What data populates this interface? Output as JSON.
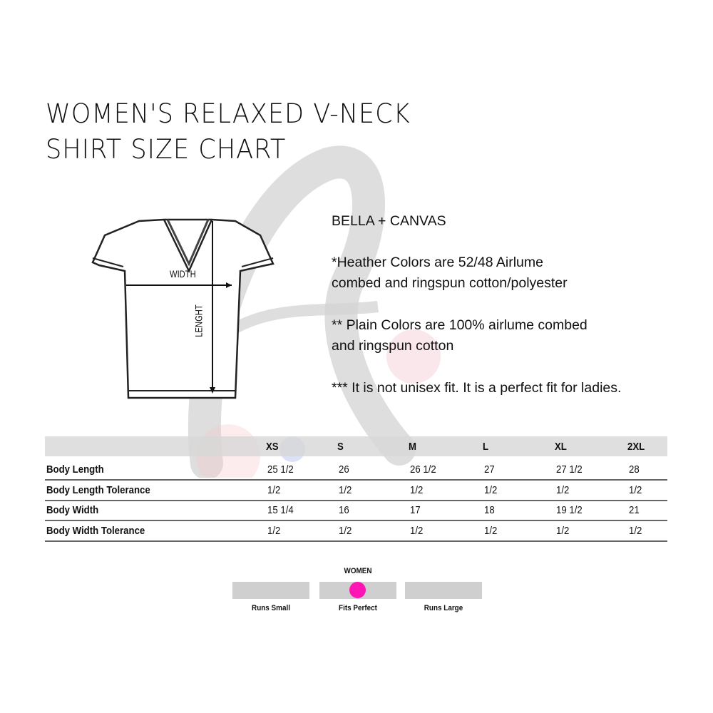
{
  "title": {
    "line1": "WOMEN'S RELAXED V-NECK",
    "line2": "SHIRT SIZE CHART"
  },
  "diagram": {
    "width_label": "WIDTH",
    "length_label": "LENGHT"
  },
  "info": {
    "brand": "BELLA + CANVAS",
    "heather_1": "*Heather Colors are  52/48 Airlume",
    "heather_2": "combed and ringspun cotton/polyester",
    "plain_1": "** Plain Colors are 100% airlume combed",
    "plain_2": "and ringspun cotton",
    "fit": "*** It is not unisex fit. It is a perfect fit for ladies."
  },
  "table": {
    "sizes": [
      "XS",
      "S",
      "M",
      "L",
      "XL",
      "2XL"
    ],
    "rows": [
      {
        "label": "Body Length",
        "values": [
          "25 1/2",
          "26",
          "26 1/2",
          "27",
          "27 1/2",
          "28"
        ]
      },
      {
        "label": "Body Length Tolerance",
        "values": [
          "1/2",
          "1/2",
          "1/2",
          "1/2",
          "1/2",
          "1/2"
        ]
      },
      {
        "label": "Body Width",
        "values": [
          "15 1/4",
          "16",
          "17",
          "18",
          "19 1/2",
          "21"
        ]
      },
      {
        "label": "Body Width Tolerance",
        "values": [
          "1/2",
          "1/2",
          "1/2",
          "1/2",
          "1/2",
          "1/2"
        ]
      }
    ]
  },
  "fit_scale": {
    "heading": "WOMEN",
    "options": [
      "Runs Small",
      "Fits Perfect",
      "Runs Large"
    ],
    "selected": "Fits Perfect",
    "marker_color": "#ff14b4"
  },
  "colors": {
    "band": "#d7d7d7",
    "marker": "#ff14b4"
  }
}
